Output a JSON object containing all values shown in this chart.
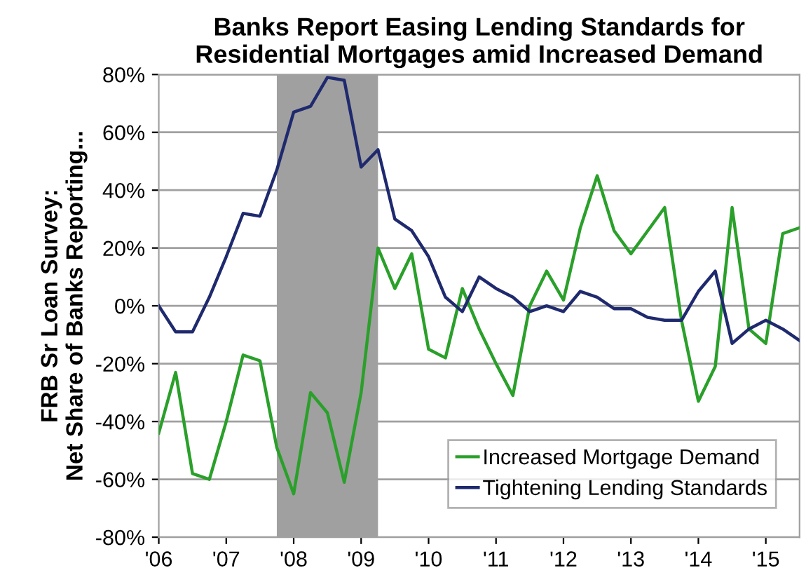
{
  "chart_data": {
    "type": "line",
    "title": "Banks Report Easing Lending Standards for\nResidential Mortgages amid Increased Demand",
    "ylabel": "FRB Sr Loan Survey:\nNet Share of Banks Reporting...",
    "x": [
      2006,
      2006.25,
      2006.5,
      2006.75,
      2007,
      2007.25,
      2007.5,
      2007.75,
      2008,
      2008.25,
      2008.5,
      2008.75,
      2009,
      2009.25,
      2009.5,
      2009.75,
      2010,
      2010.25,
      2010.5,
      2010.75,
      2011,
      2011.25,
      2011.5,
      2011.75,
      2012,
      2012.25,
      2012.5,
      2012.75,
      2013,
      2013.25,
      2013.5,
      2013.75,
      2014,
      2014.25,
      2014.5,
      2014.75,
      2015,
      2015.25,
      2015.5
    ],
    "series": [
      {
        "name": "Increased Mortgage Demand",
        "color": "#2aa02a",
        "values": [
          -44,
          -23,
          -58,
          -60,
          -40,
          -17,
          -19,
          -49,
          -65,
          -30,
          -37,
          -61,
          -30,
          20,
          6,
          18,
          -15,
          -18,
          6,
          -8,
          -20,
          -31,
          0,
          12,
          2,
          27,
          45,
          26,
          18,
          26,
          34,
          -5,
          -33,
          -21,
          34,
          -8,
          -13,
          25,
          27
        ]
      },
      {
        "name": "Tightening Lending Standards",
        "color": "#1f2a6e",
        "values": [
          0,
          -9,
          -9,
          3,
          17,
          32,
          31,
          47,
          67,
          69,
          79,
          78,
          48,
          54,
          30,
          26,
          17,
          3,
          -2,
          10,
          6,
          3,
          -2,
          0,
          -2,
          5,
          3,
          -1,
          -1,
          -4,
          -5,
          -5,
          5,
          12,
          -13,
          -8,
          -5,
          -8,
          -12
        ]
      }
    ],
    "xlim": [
      2006,
      2015.5
    ],
    "xticks": [
      {
        "value": 2006,
        "label": "'06"
      },
      {
        "value": 2007,
        "label": "'07"
      },
      {
        "value": 2008,
        "label": "'08"
      },
      {
        "value": 2009,
        "label": "'09"
      },
      {
        "value": 2010,
        "label": "'10"
      },
      {
        "value": 2011,
        "label": "'11"
      },
      {
        "value": 2012,
        "label": "'12"
      },
      {
        "value": 2013,
        "label": "'13"
      },
      {
        "value": 2014,
        "label": "'14"
      },
      {
        "value": 2015,
        "label": "'15"
      }
    ],
    "ylim": [
      -80,
      80
    ],
    "yticks": [
      {
        "value": -80,
        "label": "-80%"
      },
      {
        "value": -60,
        "label": "-60%"
      },
      {
        "value": -40,
        "label": "-40%"
      },
      {
        "value": -20,
        "label": "-20%"
      },
      {
        "value": 0,
        "label": "0%"
      },
      {
        "value": 20,
        "label": "20%"
      },
      {
        "value": 40,
        "label": "40%"
      },
      {
        "value": 60,
        "label": "60%"
      },
      {
        "value": 80,
        "label": "80%"
      }
    ],
    "bands": [
      {
        "axis": "x",
        "from": 2007.75,
        "to": 2009.25,
        "color": "#a0a0a0"
      }
    ],
    "grid": "y",
    "legend": "bottom right"
  }
}
